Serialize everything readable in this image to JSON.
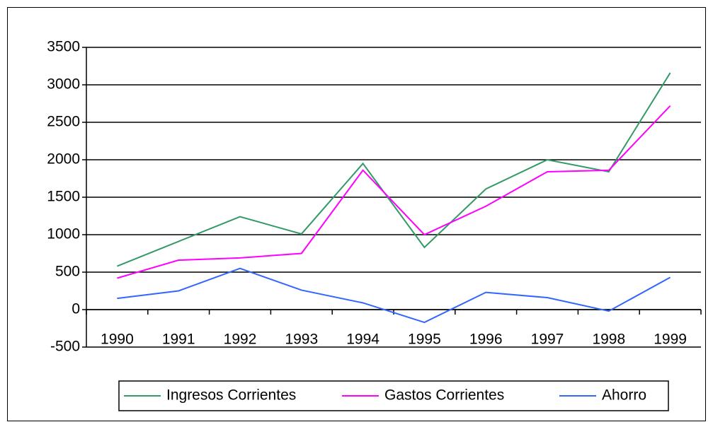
{
  "chart_data": {
    "type": "line",
    "categories": [
      "1990",
      "1991",
      "1992",
      "1993",
      "1994",
      "1995",
      "1996",
      "1997",
      "1998",
      "1999"
    ],
    "series": [
      {
        "name": "Ingresos Corrientes",
        "color": "#339966",
        "values": [
          580,
          910,
          1240,
          1010,
          1950,
          830,
          1610,
          2000,
          1840,
          3160
        ]
      },
      {
        "name": "Gastos Corrientes",
        "color": "#ff00ff",
        "values": [
          420,
          660,
          690,
          750,
          1860,
          1000,
          1380,
          1840,
          1860,
          2720
        ]
      },
      {
        "name": "Ahorro",
        "color": "#3366ff",
        "values": [
          150,
          250,
          550,
          260,
          90,
          -170,
          230,
          160,
          -20,
          430
        ]
      }
    ],
    "ylim": [
      -500,
      3500
    ],
    "yticks": [
      -500,
      0,
      500,
      1000,
      1500,
      2000,
      2500,
      3000,
      3500
    ],
    "grid": true,
    "legend": "bottom"
  }
}
